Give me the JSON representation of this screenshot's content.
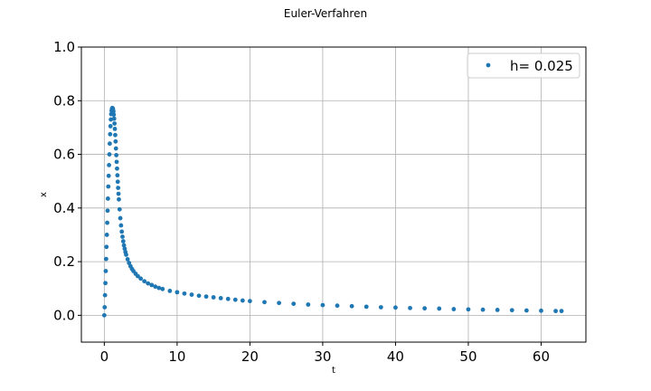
{
  "chart_data": {
    "type": "scatter",
    "title": "Euler-Verfahren",
    "xlabel": "t",
    "ylabel": "x",
    "xlim": [
      -3.15,
      66.15
    ],
    "ylim": [
      -0.1,
      1.0
    ],
    "xticks": [
      0,
      10,
      20,
      30,
      40,
      50,
      60
    ],
    "yticks": [
      0.0,
      0.2,
      0.4,
      0.6,
      0.8,
      1.0
    ],
    "xtick_labels": [
      "0",
      "10",
      "20",
      "30",
      "40",
      "50",
      "60"
    ],
    "ytick_labels": [
      "0.0",
      "0.2",
      "0.4",
      "0.6",
      "0.8",
      "1.0"
    ],
    "grid": true,
    "legend_position": "top-right",
    "color": "#1f77b4",
    "series": [
      {
        "name": "h= 0.025",
        "x": [
          0,
          0.05,
          0.1,
          0.15,
          0.2,
          0.25,
          0.3,
          0.35,
          0.4,
          0.45,
          0.5,
          0.55,
          0.6,
          0.65,
          0.7,
          0.75,
          0.8,
          0.85,
          0.9,
          0.95,
          1.0,
          1.05,
          1.1,
          1.15,
          1.2,
          1.25,
          1.3,
          1.35,
          1.4,
          1.45,
          1.5,
          1.55,
          1.6,
          1.65,
          1.7,
          1.75,
          1.8,
          1.85,
          1.9,
          1.95,
          2.0,
          2.1,
          2.2,
          2.3,
          2.4,
          2.5,
          2.6,
          2.7,
          2.8,
          2.9,
          3.0,
          3.2,
          3.4,
          3.6,
          3.8,
          4.0,
          4.3,
          4.6,
          5.0,
          5.5,
          6.0,
          6.5,
          7.0,
          7.5,
          8.0,
          9.0,
          10.0,
          11.0,
          12.0,
          13.0,
          14.0,
          15.0,
          16.0,
          17.0,
          18.0,
          19.0,
          20.0,
          22.0,
          24.0,
          26.0,
          28.0,
          30.0,
          32.0,
          34.0,
          36.0,
          38.0,
          40.0,
          42.0,
          44.0,
          46.0,
          48.0,
          50.0,
          52.0,
          54.0,
          56.0,
          58.0,
          60.0,
          62.0,
          62.8
        ],
        "y": [
          0.0,
          0.03,
          0.075,
          0.12,
          0.165,
          0.21,
          0.255,
          0.3,
          0.345,
          0.39,
          0.435,
          0.48,
          0.52,
          0.56,
          0.6,
          0.64,
          0.675,
          0.705,
          0.73,
          0.75,
          0.763,
          0.77,
          0.773,
          0.772,
          0.768,
          0.76,
          0.748,
          0.733,
          0.715,
          0.695,
          0.672,
          0.648,
          0.622,
          0.597,
          0.572,
          0.547,
          0.522,
          0.498,
          0.475,
          0.453,
          0.432,
          0.395,
          0.362,
          0.335,
          0.312,
          0.293,
          0.276,
          0.261,
          0.248,
          0.236,
          0.226,
          0.209,
          0.195,
          0.183,
          0.173,
          0.165,
          0.155,
          0.146,
          0.137,
          0.127,
          0.119,
          0.113,
          0.107,
          0.102,
          0.098,
          0.091,
          0.086,
          0.081,
          0.077,
          0.073,
          0.07,
          0.067,
          0.064,
          0.061,
          0.058,
          0.055,
          0.053,
          0.049,
          0.046,
          0.043,
          0.04,
          0.038,
          0.036,
          0.034,
          0.032,
          0.03,
          0.029,
          0.027,
          0.026,
          0.025,
          0.023,
          0.022,
          0.021,
          0.02,
          0.019,
          0.018,
          0.017,
          0.016,
          0.016
        ]
      }
    ]
  }
}
